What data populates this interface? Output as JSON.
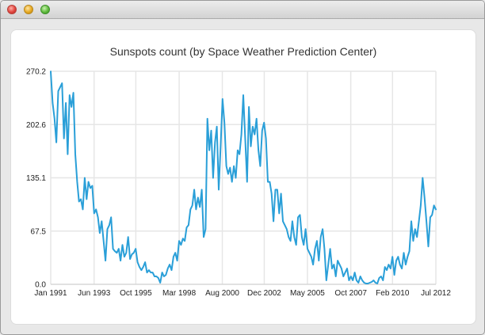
{
  "window": {
    "title": ""
  },
  "chart_data": {
    "type": "line",
    "title": "Sunspots count (by Space Weather Prediction Center)",
    "xlabel": "",
    "ylabel": "",
    "x_start_year": 1991,
    "x_end_year": 2012.5,
    "ylim": [
      0,
      270.2
    ],
    "y_ticks": [
      "270.2",
      "202.6",
      "135.1",
      "67.5",
      "0.0"
    ],
    "y_tick_values": [
      270.2,
      202.6,
      135.1,
      67.5,
      0.0
    ],
    "x_ticks": [
      "Jan 1991",
      "Jun 1993",
      "Oct 1995",
      "Mar 1998",
      "Aug 2000",
      "Dec 2002",
      "May 2005",
      "Oct 2007",
      "Feb 2010",
      "Jul 2012"
    ],
    "x_tick_values": [
      1991.0,
      1993.42,
      1995.75,
      1998.17,
      2000.58,
      2002.92,
      2005.33,
      2007.75,
      2010.08,
      2012.5
    ],
    "line_color": "#2a9fd8",
    "series": [
      {
        "name": "Sunspots",
        "values": [
          270,
          230,
          210,
          180,
          245,
          250,
          255,
          185,
          230,
          165,
          240,
          225,
          243,
          165,
          130,
          105,
          108,
          95,
          135,
          108,
          130,
          122,
          125,
          90,
          95,
          85,
          65,
          80,
          55,
          30,
          70,
          75,
          85,
          45,
          42,
          40,
          45,
          30,
          50,
          35,
          40,
          60,
          32,
          38,
          40,
          45,
          28,
          22,
          18,
          22,
          28,
          15,
          18,
          15,
          15,
          10,
          10,
          8,
          2,
          15,
          10,
          12,
          20,
          25,
          18,
          35,
          40,
          30,
          55,
          50,
          58,
          55,
          72,
          75,
          95,
          100,
          120,
          95,
          110,
          98,
          120,
          60,
          70,
          210,
          170,
          195,
          135,
          180,
          200,
          120,
          175,
          235,
          205,
          150,
          140,
          148,
          130,
          150,
          135,
          170,
          165,
          190,
          240,
          185,
          130,
          225,
          175,
          200,
          190,
          210,
          170,
          150,
          195,
          205,
          185,
          130,
          130,
          115,
          80,
          120,
          120,
          90,
          115,
          80,
          75,
          70,
          60,
          55,
          80,
          60,
          50,
          85,
          88,
          60,
          50,
          70,
          45,
          40,
          35,
          25,
          45,
          55,
          30,
          60,
          70,
          45,
          5,
          25,
          45,
          20,
          25,
          10,
          30,
          25,
          20,
          10,
          15,
          20,
          5,
          10,
          5,
          15,
          5,
          2,
          10,
          5,
          2,
          1,
          1,
          2,
          3,
          5,
          2,
          1,
          8,
          10,
          5,
          22,
          18,
          25,
          20,
          35,
          12,
          30,
          35,
          25,
          20,
          40,
          25,
          35,
          42,
          80,
          55,
          70,
          60,
          80,
          100,
          135,
          110,
          80,
          48,
          85,
          88,
          100,
          95
        ]
      }
    ]
  }
}
